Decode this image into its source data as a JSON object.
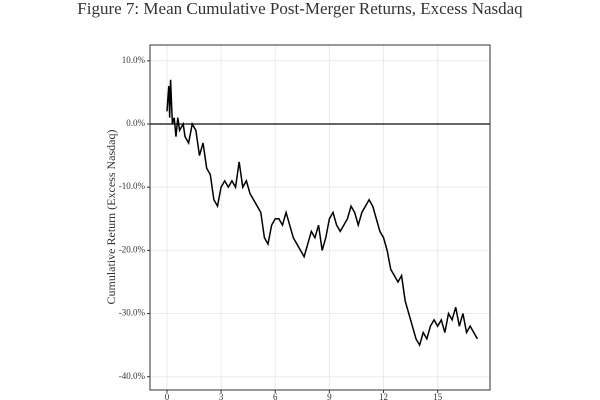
{
  "chart_data": {
    "type": "line",
    "title": "Figure 7: Mean Cumulative Post-Merger Returns, Excess Nasdaq",
    "y_label": "Cumulative Return (Excess Nasdaq)",
    "x": [
      0,
      0.1,
      0.15,
      0.2,
      0.3,
      0.4,
      0.5,
      0.6,
      0.7,
      0.9,
      1.0,
      1.2,
      1.4,
      1.6,
      1.8,
      2.0,
      2.2,
      2.4,
      2.6,
      2.8,
      3.0,
      3.2,
      3.4,
      3.6,
      3.8,
      4.0,
      4.2,
      4.4,
      4.6,
      4.8,
      5.0,
      5.2,
      5.4,
      5.6,
      5.8,
      6.0,
      6.2,
      6.4,
      6.6,
      6.8,
      7.0,
      7.2,
      7.4,
      7.6,
      7.8,
      8.0,
      8.2,
      8.4,
      8.6,
      8.8,
      9.0,
      9.2,
      9.4,
      9.6,
      9.8,
      10.0,
      10.2,
      10.4,
      10.6,
      10.8,
      11.0,
      11.2,
      11.4,
      11.6,
      11.8,
      12.0,
      12.2,
      12.4,
      12.6,
      12.8,
      13.0,
      13.2,
      13.4,
      13.6,
      13.8,
      14.0,
      14.2,
      14.4,
      14.6,
      14.8,
      15.0,
      15.2,
      15.4,
      15.6,
      15.8,
      16.0,
      16.2,
      16.4,
      16.6,
      16.8,
      17.0,
      17.2
    ],
    "series": [
      {
        "color": "#000000",
        "values": [
          2,
          6,
          1,
          7,
          0,
          1,
          -2,
          1,
          -1,
          0,
          -2,
          -3,
          0,
          -1,
          -5,
          -3,
          -7,
          -8,
          -12,
          -13,
          -10,
          -9,
          -10,
          -9,
          -10,
          -6,
          -10,
          -9,
          -11,
          -12,
          -13,
          -14,
          -18,
          -19,
          -16,
          -15,
          -15,
          -16,
          -14,
          -16,
          -18,
          -19,
          -20,
          -21,
          -19,
          -17,
          -18,
          -16,
          -20,
          -18,
          -15,
          -14,
          -16,
          -17,
          -16,
          -15,
          -13,
          -14,
          -16,
          -14,
          -13,
          -12,
          -13,
          -15,
          -17,
          -18,
          -20,
          -23,
          -24,
          -25,
          -24,
          -28,
          -30,
          -32,
          -34,
          -35,
          -33,
          -34,
          -32,
          -31,
          -32,
          -31,
          -33,
          -30,
          -31,
          -29,
          -32,
          -30,
          -33,
          -32,
          -33,
          -34
        ]
      }
    ],
    "xlim": [
      -0.94,
      17.9
    ],
    "xticks": [
      0,
      3,
      6,
      9,
      12,
      15
    ],
    "ylim": [
      -42.1,
      12.5
    ],
    "yticks": [
      {
        "value": 10,
        "label": "10.0%"
      },
      {
        "value": 0,
        "label": "0.0%"
      },
      {
        "value": -10,
        "label": "-10.0%"
      },
      {
        "value": -20,
        "label": "-20.0%"
      },
      {
        "value": -30,
        "label": "-30.0%"
      },
      {
        "value": -40,
        "label": "-40.0%"
      }
    ],
    "hline": 0,
    "grid": true
  }
}
